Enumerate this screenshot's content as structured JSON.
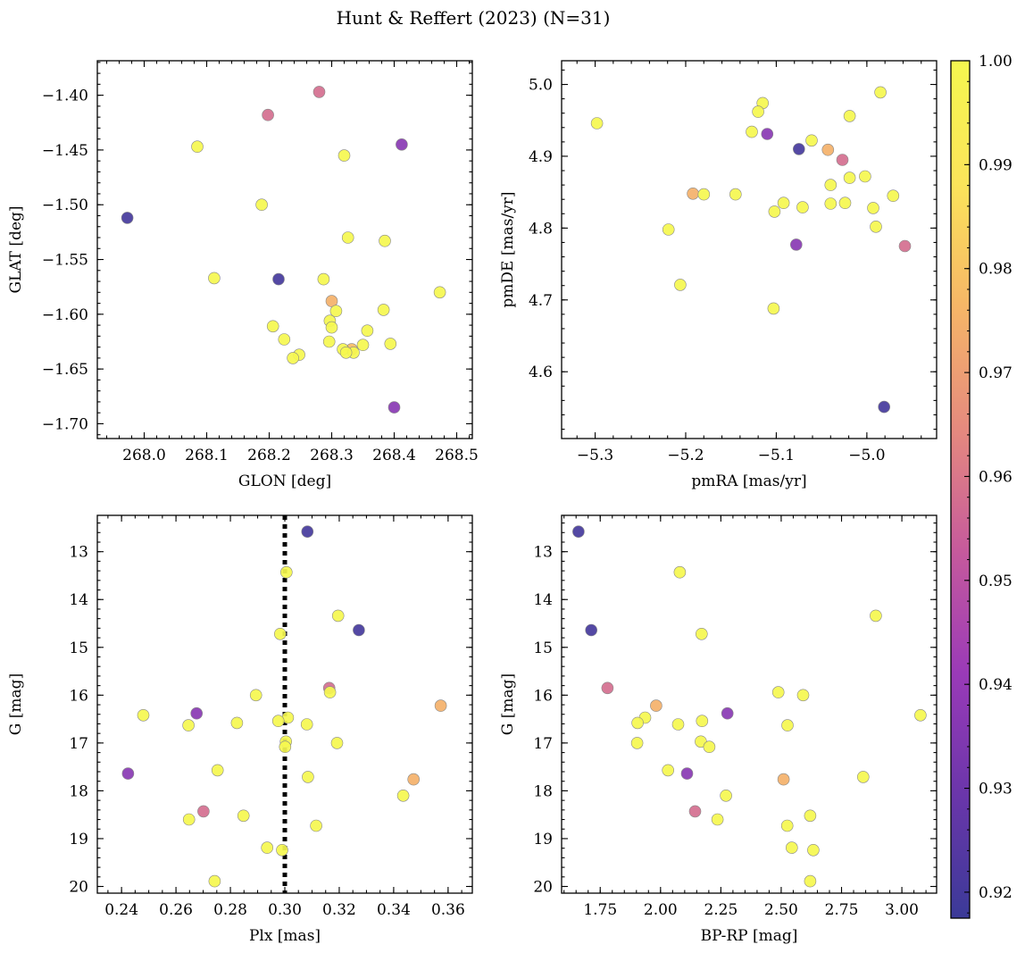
{
  "title": "Hunt & Reffert (2023) (N=31)",
  "colorbar": {
    "min": 0.9175,
    "max": 1.0,
    "ticks": [
      0.92,
      0.93,
      0.94,
      0.95,
      0.96,
      0.97,
      0.98,
      0.99,
      1.0
    ],
    "tick_labels": [
      "0.92",
      "0.93",
      "0.94",
      "0.95",
      "0.96",
      "0.97",
      "0.98",
      "0.99",
      "1.00"
    ],
    "colormap": "plasma",
    "colormap_stops": [
      "#3b3a98",
      "#6a36aa",
      "#9a3ab8",
      "#c65a9c",
      "#e58a7e",
      "#f6b667",
      "#fbe45a",
      "#f5f74f"
    ]
  },
  "point_style": {
    "edge_color": "#888888"
  },
  "chart_data": [
    {
      "id": "sky",
      "type": "scatter",
      "xlabel": "GLON [deg]",
      "ylabel": "GLAT [deg]",
      "xlim": [
        267.925,
        268.525
      ],
      "ylim": [
        -1.7135,
        -1.3685
      ],
      "y_inverted": false,
      "xticks": [
        268.0,
        268.1,
        268.2,
        268.3,
        268.4,
        268.5
      ],
      "xtick_labels": [
        "268.0",
        "268.1",
        "268.2",
        "268.3",
        "268.4",
        "268.5"
      ],
      "yticks": [
        -1.4,
        -1.45,
        -1.5,
        -1.55,
        -1.6,
        -1.65,
        -1.7
      ],
      "ytick_labels": [
        "−1.40",
        "−1.45",
        "−1.50",
        "−1.55",
        "−1.60",
        "−1.65",
        "−1.70"
      ],
      "x_minor": 0.02,
      "y_minor": 0.01,
      "vline": null,
      "points": [
        {
          "x": 268.28,
          "y": -1.397,
          "c": 0.958
        },
        {
          "x": 268.198,
          "y": -1.418,
          "c": 0.958
        },
        {
          "x": 268.412,
          "y": -1.445,
          "c": 0.937
        },
        {
          "x": 268.085,
          "y": -1.447,
          "c": 1.0
        },
        {
          "x": 268.32,
          "y": -1.455,
          "c": 1.0
        },
        {
          "x": 267.973,
          "y": -1.512,
          "c": 0.92
        },
        {
          "x": 268.188,
          "y": -1.5,
          "c": 1.0
        },
        {
          "x": 268.326,
          "y": -1.53,
          "c": 1.0
        },
        {
          "x": 268.385,
          "y": -1.533,
          "c": 1.0
        },
        {
          "x": 268.112,
          "y": -1.567,
          "c": 1.0
        },
        {
          "x": 268.215,
          "y": -1.568,
          "c": 0.92
        },
        {
          "x": 268.287,
          "y": -1.568,
          "c": 1.0
        },
        {
          "x": 268.473,
          "y": -1.58,
          "c": 1.0
        },
        {
          "x": 268.3,
          "y": -1.588,
          "c": 0.975
        },
        {
          "x": 268.383,
          "y": -1.596,
          "c": 1.0
        },
        {
          "x": 268.307,
          "y": -1.597,
          "c": 1.0
        },
        {
          "x": 268.297,
          "y": -1.606,
          "c": 1.0
        },
        {
          "x": 268.206,
          "y": -1.611,
          "c": 1.0
        },
        {
          "x": 268.3,
          "y": -1.612,
          "c": 1.0
        },
        {
          "x": 268.357,
          "y": -1.615,
          "c": 1.0
        },
        {
          "x": 268.224,
          "y": -1.623,
          "c": 1.0
        },
        {
          "x": 268.296,
          "y": -1.625,
          "c": 1.0
        },
        {
          "x": 268.394,
          "y": -1.627,
          "c": 1.0
        },
        {
          "x": 268.35,
          "y": -1.628,
          "c": 1.0
        },
        {
          "x": 268.332,
          "y": -1.632,
          "c": 0.978
        },
        {
          "x": 268.318,
          "y": -1.632,
          "c": 1.0
        },
        {
          "x": 268.335,
          "y": -1.635,
          "c": 1.0
        },
        {
          "x": 268.323,
          "y": -1.635,
          "c": 1.0
        },
        {
          "x": 268.248,
          "y": -1.637,
          "c": 1.0
        },
        {
          "x": 268.238,
          "y": -1.64,
          "c": 1.0
        },
        {
          "x": 268.4,
          "y": -1.685,
          "c": 0.937
        }
      ]
    },
    {
      "id": "pm",
      "type": "scatter",
      "xlabel": "pmRA [mas/yr]",
      "ylabel": "pmDE [mas/yr]",
      "xlim": [
        -5.337,
        -4.923
      ],
      "ylim": [
        4.507,
        5.033
      ],
      "y_inverted": false,
      "xticks": [
        -5.3,
        -5.2,
        -5.1,
        -5.0
      ],
      "xtick_labels": [
        "−5.3",
        "−5.2",
        "−5.1",
        "−5.0"
      ],
      "yticks": [
        4.6,
        4.7,
        4.8,
        4.9,
        5.0
      ],
      "ytick_labels": [
        "4.6",
        "4.7",
        "4.8",
        "4.9",
        "5.0"
      ],
      "x_minor": 0.02,
      "y_minor": 0.02,
      "vline": null,
      "points": [
        {
          "x": -4.985,
          "y": 4.989,
          "c": 1.0
        },
        {
          "x": -5.115,
          "y": 4.974,
          "c": 1.0
        },
        {
          "x": -5.12,
          "y": 4.962,
          "c": 1.0
        },
        {
          "x": -5.019,
          "y": 4.956,
          "c": 1.0
        },
        {
          "x": -5.298,
          "y": 4.946,
          "c": 1.0
        },
        {
          "x": -5.127,
          "y": 4.934,
          "c": 1.0
        },
        {
          "x": -5.11,
          "y": 4.931,
          "c": 0.937
        },
        {
          "x": -5.061,
          "y": 4.922,
          "c": 1.0
        },
        {
          "x": -5.075,
          "y": 4.91,
          "c": 0.92
        },
        {
          "x": -5.043,
          "y": 4.909,
          "c": 0.975
        },
        {
          "x": -5.027,
          "y": 4.895,
          "c": 0.958
        },
        {
          "x": -5.002,
          "y": 4.872,
          "c": 1.0
        },
        {
          "x": -5.019,
          "y": 4.87,
          "c": 1.0
        },
        {
          "x": -5.04,
          "y": 4.86,
          "c": 1.0
        },
        {
          "x": -5.192,
          "y": 4.848,
          "c": 0.975
        },
        {
          "x": -5.18,
          "y": 4.847,
          "c": 1.0
        },
        {
          "x": -5.145,
          "y": 4.847,
          "c": 1.0
        },
        {
          "x": -4.971,
          "y": 4.845,
          "c": 1.0
        },
        {
          "x": -5.092,
          "y": 4.835,
          "c": 1.0
        },
        {
          "x": -5.024,
          "y": 4.835,
          "c": 1.0
        },
        {
          "x": -5.04,
          "y": 4.834,
          "c": 1.0
        },
        {
          "x": -5.071,
          "y": 4.829,
          "c": 1.0
        },
        {
          "x": -4.993,
          "y": 4.828,
          "c": 1.0
        },
        {
          "x": -5.102,
          "y": 4.823,
          "c": 1.0
        },
        {
          "x": -4.99,
          "y": 4.802,
          "c": 1.0
        },
        {
          "x": -5.219,
          "y": 4.798,
          "c": 1.0
        },
        {
          "x": -5.078,
          "y": 4.777,
          "c": 0.937
        },
        {
          "x": -4.958,
          "y": 4.775,
          "c": 0.958
        },
        {
          "x": -5.206,
          "y": 4.721,
          "c": 1.0
        },
        {
          "x": -5.103,
          "y": 4.688,
          "c": 1.0
        },
        {
          "x": -4.981,
          "y": 4.551,
          "c": 0.92
        }
      ]
    },
    {
      "id": "cmd_plx",
      "type": "scatter",
      "xlabel": "Plx [mas]",
      "ylabel": "G [mag]",
      "xlim": [
        0.2311,
        0.3689
      ],
      "ylim": [
        12.24,
        20.14
      ],
      "y_inverted": true,
      "xticks": [
        0.24,
        0.26,
        0.28,
        0.3,
        0.32,
        0.34,
        0.36
      ],
      "xtick_labels": [
        "0.24",
        "0.26",
        "0.28",
        "0.30",
        "0.32",
        "0.34",
        "0.36"
      ],
      "yticks": [
        13,
        14,
        15,
        16,
        17,
        18,
        19,
        20
      ],
      "ytick_labels": [
        "13",
        "14",
        "15",
        "16",
        "17",
        "18",
        "19",
        "20"
      ],
      "x_minor": 0.005,
      "y_minor": 0.2,
      "vline": 0.3,
      "points": [
        {
          "x": 0.3083,
          "y": 12.58,
          "c": 0.92
        },
        {
          "x": 0.3006,
          "y": 13.43,
          "c": 1.0
        },
        {
          "x": 0.3196,
          "y": 14.34,
          "c": 1.0
        },
        {
          "x": 0.3272,
          "y": 14.64,
          "c": 0.92
        },
        {
          "x": 0.2983,
          "y": 14.72,
          "c": 1.0
        },
        {
          "x": 0.3163,
          "y": 15.85,
          "c": 0.958
        },
        {
          "x": 0.3166,
          "y": 15.94,
          "c": 1.0
        },
        {
          "x": 0.2894,
          "y": 16.0,
          "c": 1.0
        },
        {
          "x": 0.3573,
          "y": 16.22,
          "c": 0.975
        },
        {
          "x": 0.2676,
          "y": 16.38,
          "c": 0.937
        },
        {
          "x": 0.248,
          "y": 16.42,
          "c": 1.0
        },
        {
          "x": 0.3011,
          "y": 16.47,
          "c": 1.0
        },
        {
          "x": 0.2976,
          "y": 16.54,
          "c": 1.0
        },
        {
          "x": 0.2824,
          "y": 16.58,
          "c": 1.0
        },
        {
          "x": 0.2646,
          "y": 16.63,
          "c": 1.0
        },
        {
          "x": 0.3081,
          "y": 16.61,
          "c": 1.0
        },
        {
          "x": 0.3004,
          "y": 16.97,
          "c": 1.0
        },
        {
          "x": 0.3192,
          "y": 17.0,
          "c": 1.0
        },
        {
          "x": 0.3001,
          "y": 17.08,
          "c": 1.0
        },
        {
          "x": 0.2753,
          "y": 17.57,
          "c": 1.0
        },
        {
          "x": 0.2424,
          "y": 17.64,
          "c": 0.937
        },
        {
          "x": 0.3085,
          "y": 17.71,
          "c": 1.0
        },
        {
          "x": 0.3473,
          "y": 17.76,
          "c": 0.975
        },
        {
          "x": 0.3435,
          "y": 18.1,
          "c": 1.0
        },
        {
          "x": 0.2701,
          "y": 18.43,
          "c": 0.958
        },
        {
          "x": 0.2848,
          "y": 18.52,
          "c": 1.0
        },
        {
          "x": 0.2648,
          "y": 18.6,
          "c": 1.0
        },
        {
          "x": 0.3115,
          "y": 18.73,
          "c": 1.0
        },
        {
          "x": 0.2935,
          "y": 19.19,
          "c": 1.0
        },
        {
          "x": 0.299,
          "y": 19.24,
          "c": 1.0
        },
        {
          "x": 0.2742,
          "y": 19.89,
          "c": 1.0
        }
      ]
    },
    {
      "id": "cmd_color",
      "type": "scatter",
      "xlabel": "BP-RP [mag]",
      "ylabel": "G [mag]",
      "xlim": [
        1.59,
        3.144
      ],
      "ylim": [
        12.24,
        20.14
      ],
      "y_inverted": true,
      "xticks": [
        1.75,
        2.0,
        2.25,
        2.5,
        2.75,
        3.0
      ],
      "xtick_labels": [
        "1.75",
        "2.00",
        "2.25",
        "2.50",
        "2.75",
        "3.00"
      ],
      "yticks": [
        13,
        14,
        15,
        16,
        17,
        18,
        19,
        20
      ],
      "ytick_labels": [
        "13",
        "14",
        "15",
        "16",
        "17",
        "18",
        "19",
        "20"
      ],
      "x_minor": 0.05,
      "y_minor": 0.2,
      "vline": null,
      "points": [
        {
          "x": 1.66,
          "y": 12.58,
          "c": 0.92
        },
        {
          "x": 2.08,
          "y": 13.43,
          "c": 1.0
        },
        {
          "x": 2.892,
          "y": 14.34,
          "c": 1.0
        },
        {
          "x": 1.713,
          "y": 14.64,
          "c": 0.92
        },
        {
          "x": 2.17,
          "y": 14.72,
          "c": 1.0
        },
        {
          "x": 1.78,
          "y": 15.85,
          "c": 0.958
        },
        {
          "x": 2.488,
          "y": 15.94,
          "c": 1.0
        },
        {
          "x": 2.591,
          "y": 16.0,
          "c": 1.0
        },
        {
          "x": 1.982,
          "y": 16.22,
          "c": 0.975
        },
        {
          "x": 2.277,
          "y": 16.38,
          "c": 0.937
        },
        {
          "x": 3.077,
          "y": 16.42,
          "c": 1.0
        },
        {
          "x": 1.936,
          "y": 16.47,
          "c": 1.0
        },
        {
          "x": 2.172,
          "y": 16.54,
          "c": 1.0
        },
        {
          "x": 1.905,
          "y": 16.58,
          "c": 1.0
        },
        {
          "x": 2.073,
          "y": 16.61,
          "c": 1.0
        },
        {
          "x": 2.526,
          "y": 16.63,
          "c": 1.0
        },
        {
          "x": 2.167,
          "y": 16.97,
          "c": 1.0
        },
        {
          "x": 1.903,
          "y": 17.0,
          "c": 1.0
        },
        {
          "x": 2.202,
          "y": 17.08,
          "c": 1.0
        },
        {
          "x": 2.031,
          "y": 17.57,
          "c": 1.0
        },
        {
          "x": 2.11,
          "y": 17.64,
          "c": 0.937
        },
        {
          "x": 2.84,
          "y": 17.71,
          "c": 1.0
        },
        {
          "x": 2.51,
          "y": 17.76,
          "c": 0.975
        },
        {
          "x": 2.271,
          "y": 18.1,
          "c": 1.0
        },
        {
          "x": 2.143,
          "y": 18.43,
          "c": 0.958
        },
        {
          "x": 2.62,
          "y": 18.52,
          "c": 1.0
        },
        {
          "x": 2.236,
          "y": 18.6,
          "c": 1.0
        },
        {
          "x": 2.525,
          "y": 18.73,
          "c": 1.0
        },
        {
          "x": 2.544,
          "y": 19.19,
          "c": 1.0
        },
        {
          "x": 2.633,
          "y": 19.24,
          "c": 1.0
        },
        {
          "x": 2.62,
          "y": 19.89,
          "c": 1.0
        }
      ]
    }
  ]
}
